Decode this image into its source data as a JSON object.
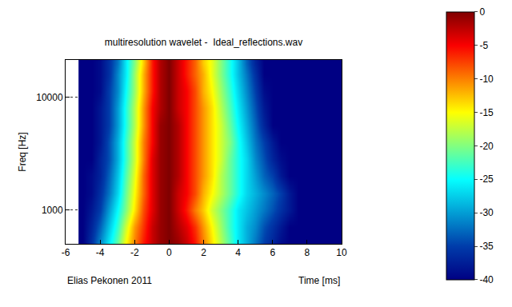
{
  "chart_data": {
    "type": "heatmap",
    "title": "multiresolution wavelet -  Ideal_reflections.wav",
    "xlabel": "Time [ms]",
    "ylabel": "Freq [Hz]",
    "annotations": [
      "Elias Pekonen 2011"
    ],
    "color": "Jet",
    "log": "y",
    "grid": true,
    "xlim": [
      -6,
      10
    ],
    "xticks": [
      -6,
      -4,
      -2,
      0,
      2,
      4,
      6,
      8,
      10
    ],
    "ylim": [
      500,
      21500
    ],
    "yticks": [
      1000,
      10000
    ],
    "colorbar": {
      "range": [
        -40,
        0
      ],
      "ticks": [
        0,
        -5,
        -10,
        -15,
        -20,
        -25,
        -30,
        -35,
        -40
      ]
    },
    "x": [
      -5,
      -4.5,
      -4,
      -3.5,
      -3,
      -2.5,
      -2,
      -1.5,
      -1,
      -0.5,
      0,
      0.5,
      1,
      1.5,
      2,
      2.5,
      3,
      3.5,
      4,
      4.5,
      5,
      5.5,
      6,
      6.5,
      7,
      7.5,
      8,
      8.5,
      9,
      9.5,
      10
    ],
    "y": [
      500,
      700,
      1000,
      1400,
      2000,
      2800,
      4000,
      5600,
      8000,
      11300,
      16000,
      20000
    ],
    "z": [
      [
        -40,
        -36,
        -31,
        -26,
        -21,
        -15,
        -10,
        -6,
        -3,
        -1,
        0,
        -1,
        -3,
        -6,
        -10,
        -14,
        -18,
        -22,
        -26,
        -29,
        -32,
        -35,
        -37,
        -39,
        -40,
        -40,
        -40,
        -40,
        -40,
        -40,
        -40
      ],
      [
        -40,
        -37,
        -33,
        -28,
        -23,
        -17,
        -11,
        -7,
        -3,
        -1,
        0,
        -2,
        -4,
        -7,
        -11,
        -15,
        -19,
        -23,
        -26,
        -29,
        -31,
        -34,
        -36,
        -38,
        -40,
        -40,
        -40,
        -40,
        -40,
        -40,
        -40
      ],
      [
        -40,
        -38,
        -35,
        -30,
        -25,
        -20,
        -14,
        -8,
        -4,
        -1,
        0,
        -3,
        -6,
        -10,
        -13,
        -17,
        -20,
        -23,
        -26,
        -28,
        -30,
        -32,
        -34,
        -36,
        -38,
        -40,
        -40,
        -40,
        -40,
        -40,
        -40
      ],
      [
        -40,
        -39,
        -36,
        -32,
        -27,
        -21,
        -15,
        -9,
        -4,
        -1,
        0,
        -3,
        -5,
        -8,
        -12,
        -15,
        -18,
        -21,
        -24,
        -27,
        -29,
        -31,
        -33,
        -35,
        -38,
        -40,
        -40,
        -40,
        -40,
        -40,
        -40
      ],
      [
        -40,
        -39,
        -37,
        -33,
        -28,
        -22,
        -16,
        -9,
        -4,
        -1,
        0,
        -2,
        -5,
        -8,
        -11,
        -14,
        -18,
        -21,
        -24,
        -27,
        -30,
        -33,
        -35,
        -38,
        -40,
        -40,
        -40,
        -40,
        -40,
        -40,
        -40
      ],
      [
        -40,
        -40,
        -37,
        -34,
        -29,
        -23,
        -17,
        -10,
        -4,
        -1,
        0,
        -2,
        -5,
        -8,
        -11,
        -14,
        -17,
        -21,
        -24,
        -27,
        -31,
        -34,
        -37,
        -39,
        -40,
        -40,
        -40,
        -40,
        -40,
        -40,
        -40
      ],
      [
        -40,
        -40,
        -38,
        -34,
        -29,
        -23,
        -17,
        -10,
        -5,
        -1,
        0,
        -2,
        -5,
        -8,
        -11,
        -14,
        -17,
        -20,
        -24,
        -28,
        -32,
        -35,
        -38,
        -40,
        -40,
        -40,
        -40,
        -40,
        -40,
        -40,
        -40
      ],
      [
        -40,
        -40,
        -38,
        -35,
        -30,
        -24,
        -18,
        -11,
        -5,
        -1,
        0,
        -2,
        -5,
        -8,
        -11,
        -14,
        -17,
        -21,
        -25,
        -29,
        -33,
        -37,
        -40,
        -40,
        -40,
        -40,
        -40,
        -40,
        -40,
        -40,
        -40
      ],
      [
        -40,
        -40,
        -38,
        -35,
        -30,
        -24,
        -18,
        -11,
        -5,
        -2,
        0,
        -3,
        -5,
        -8,
        -11,
        -14,
        -18,
        -22,
        -26,
        -30,
        -34,
        -38,
        -40,
        -40,
        -40,
        -40,
        -40,
        -40,
        -40,
        -40,
        -40
      ],
      [
        -40,
        -40,
        -39,
        -35,
        -31,
        -25,
        -19,
        -12,
        -6,
        -2,
        0,
        -3,
        -5,
        -8,
        -12,
        -15,
        -19,
        -23,
        -27,
        -31,
        -35,
        -39,
        -40,
        -40,
        -40,
        -40,
        -40,
        -40,
        -40,
        -40,
        -40
      ],
      [
        -40,
        -40,
        -39,
        -36,
        -31,
        -26,
        -19,
        -12,
        -6,
        -2,
        0,
        -3,
        -6,
        -9,
        -12,
        -16,
        -20,
        -24,
        -28,
        -32,
        -36,
        -40,
        -40,
        -40,
        -40,
        -40,
        -40,
        -40,
        -40,
        -40,
        -40
      ],
      [
        -40,
        -40,
        -39,
        -36,
        -32,
        -26,
        -20,
        -13,
        -6,
        -2,
        0,
        -3,
        -6,
        -9,
        -13,
        -16,
        -20,
        -24,
        -28,
        -33,
        -37,
        -40,
        -40,
        -40,
        -40,
        -40,
        -40,
        -40,
        -40,
        -40,
        -40
      ]
    ]
  }
}
